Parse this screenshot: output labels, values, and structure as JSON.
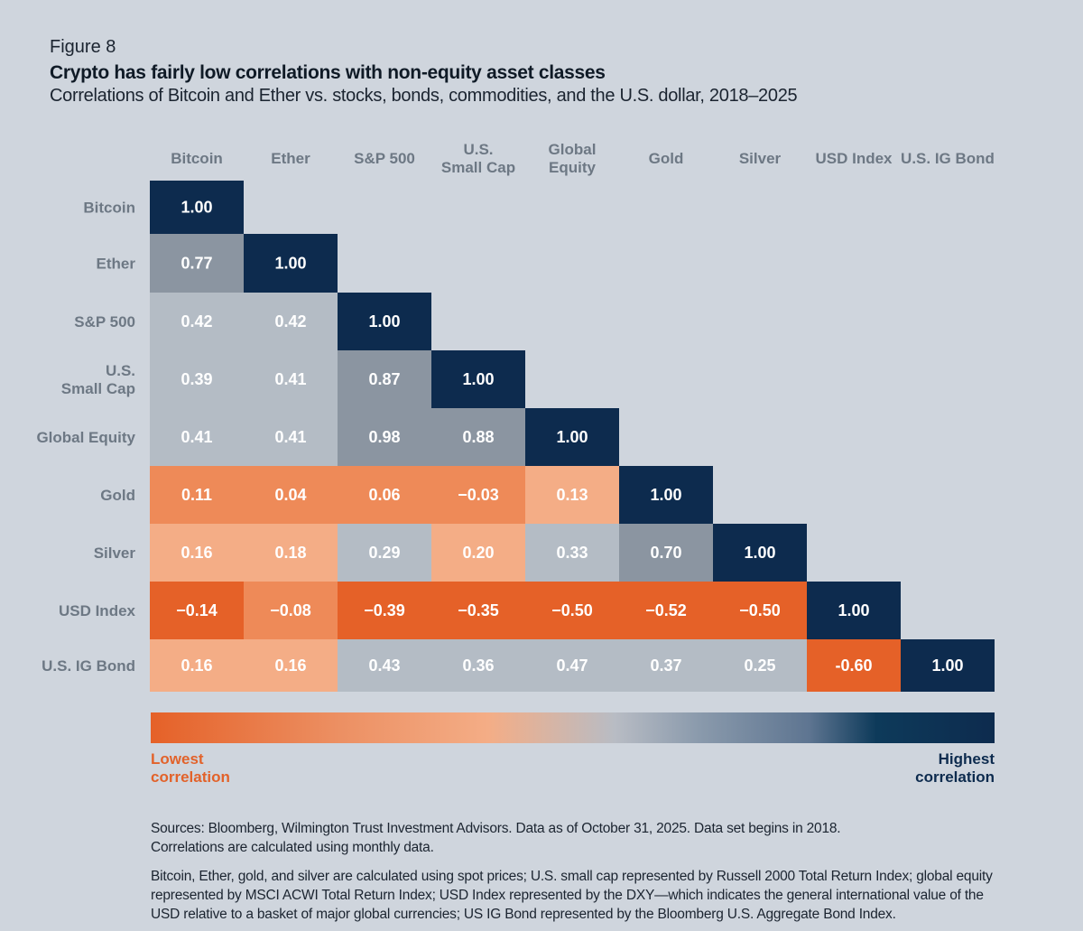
{
  "figure_label": "Figure 8",
  "title": "Crypto has fairly low correlations with non-equity asset classes",
  "subtitle": "Correlations of Bitcoin and Ether vs. stocks, bonds, commodities, and the U.S. dollar, 2018–2025",
  "chart_data": {
    "type": "heatmap",
    "title": "Crypto has fairly low correlations with non-equity asset classes",
    "subtitle": "Correlations of Bitcoin and Ether vs. stocks, bonds, commodities, and the U.S. dollar, 2018–2025",
    "columns": [
      "Bitcoin",
      "Ether",
      "S&P 500",
      "U.S.\nSmall Cap",
      "Global\nEquity",
      "Gold",
      "Silver",
      "USD Index",
      "U.S. IG Bond"
    ],
    "rows": [
      "Bitcoin",
      "Ether",
      "S&P 500",
      "U.S.\nSmall Cap",
      "Global Equity",
      "Gold",
      "Silver",
      "USD Index",
      "U.S. IG Bond"
    ],
    "matrix": [
      [
        1.0
      ],
      [
        0.77,
        1.0
      ],
      [
        0.42,
        0.42,
        1.0
      ],
      [
        0.39,
        0.41,
        0.87,
        1.0
      ],
      [
        0.41,
        0.41,
        0.98,
        0.88,
        1.0
      ],
      [
        0.11,
        0.04,
        0.06,
        -0.03,
        0.13,
        1.0
      ],
      [
        0.16,
        0.18,
        0.29,
        0.2,
        0.33,
        0.7,
        1.0
      ],
      [
        -0.14,
        -0.08,
        -0.39,
        -0.35,
        -0.5,
        -0.52,
        -0.5,
        1.0
      ],
      [
        0.16,
        0.16,
        0.43,
        0.36,
        0.47,
        0.37,
        0.25,
        -0.6,
        1.0
      ]
    ],
    "labels": [
      [
        "1.00"
      ],
      [
        "0.77",
        "1.00"
      ],
      [
        "0.42",
        "0.42",
        "1.00"
      ],
      [
        "0.39",
        "0.41",
        "0.87",
        "1.00"
      ],
      [
        "0.41",
        "0.41",
        "0.98",
        "0.88",
        "1.00"
      ],
      [
        "0.11",
        "0.04",
        "0.06",
        "−0.03",
        "0.13",
        "1.00"
      ],
      [
        "0.16",
        "0.18",
        "0.29",
        "0.20",
        "0.33",
        "0.70",
        "1.00"
      ],
      [
        "−0.14",
        "−0.08",
        "−0.39",
        "−0.35",
        "−0.50",
        "−0.52",
        "−0.50",
        "1.00"
      ],
      [
        "0.16",
        "0.16",
        "0.43",
        "0.36",
        "0.47",
        "0.37",
        "0.25",
        "-0.60",
        "1.00"
      ]
    ],
    "legend": {
      "low": "Lowest\ncorrelation",
      "high": "Highest\ncorrelation"
    }
  },
  "colors": {
    "navy": "#0d2b4e",
    "slate_dark": "#8b95a1",
    "slate_mid": "#9ca6b1",
    "slate_light": "#b4bcc5",
    "orange_light": "#f4ad86",
    "orange_mid": "#ee8a58",
    "orange_dark": "#e56128"
  },
  "sources": {
    "line1": "Sources: Bloomberg, Wilmington Trust Investment Advisors. Data as of October 31, 2025. Data set begins in 2018.",
    "line2": "Correlations are calculated using monthly data.",
    "note": "Bitcoin, Ether, gold, and silver are calculated using spot prices; U.S. small cap represented by Russell 2000 Total Return Index; global equity represented by MSCI ACWI Total Return Index; USD Index represented by the DXY—which indicates the general international value of the USD relative to a basket of major global currencies; US IG Bond represented by the Bloomberg U.S. Aggregate Bond Index."
  }
}
